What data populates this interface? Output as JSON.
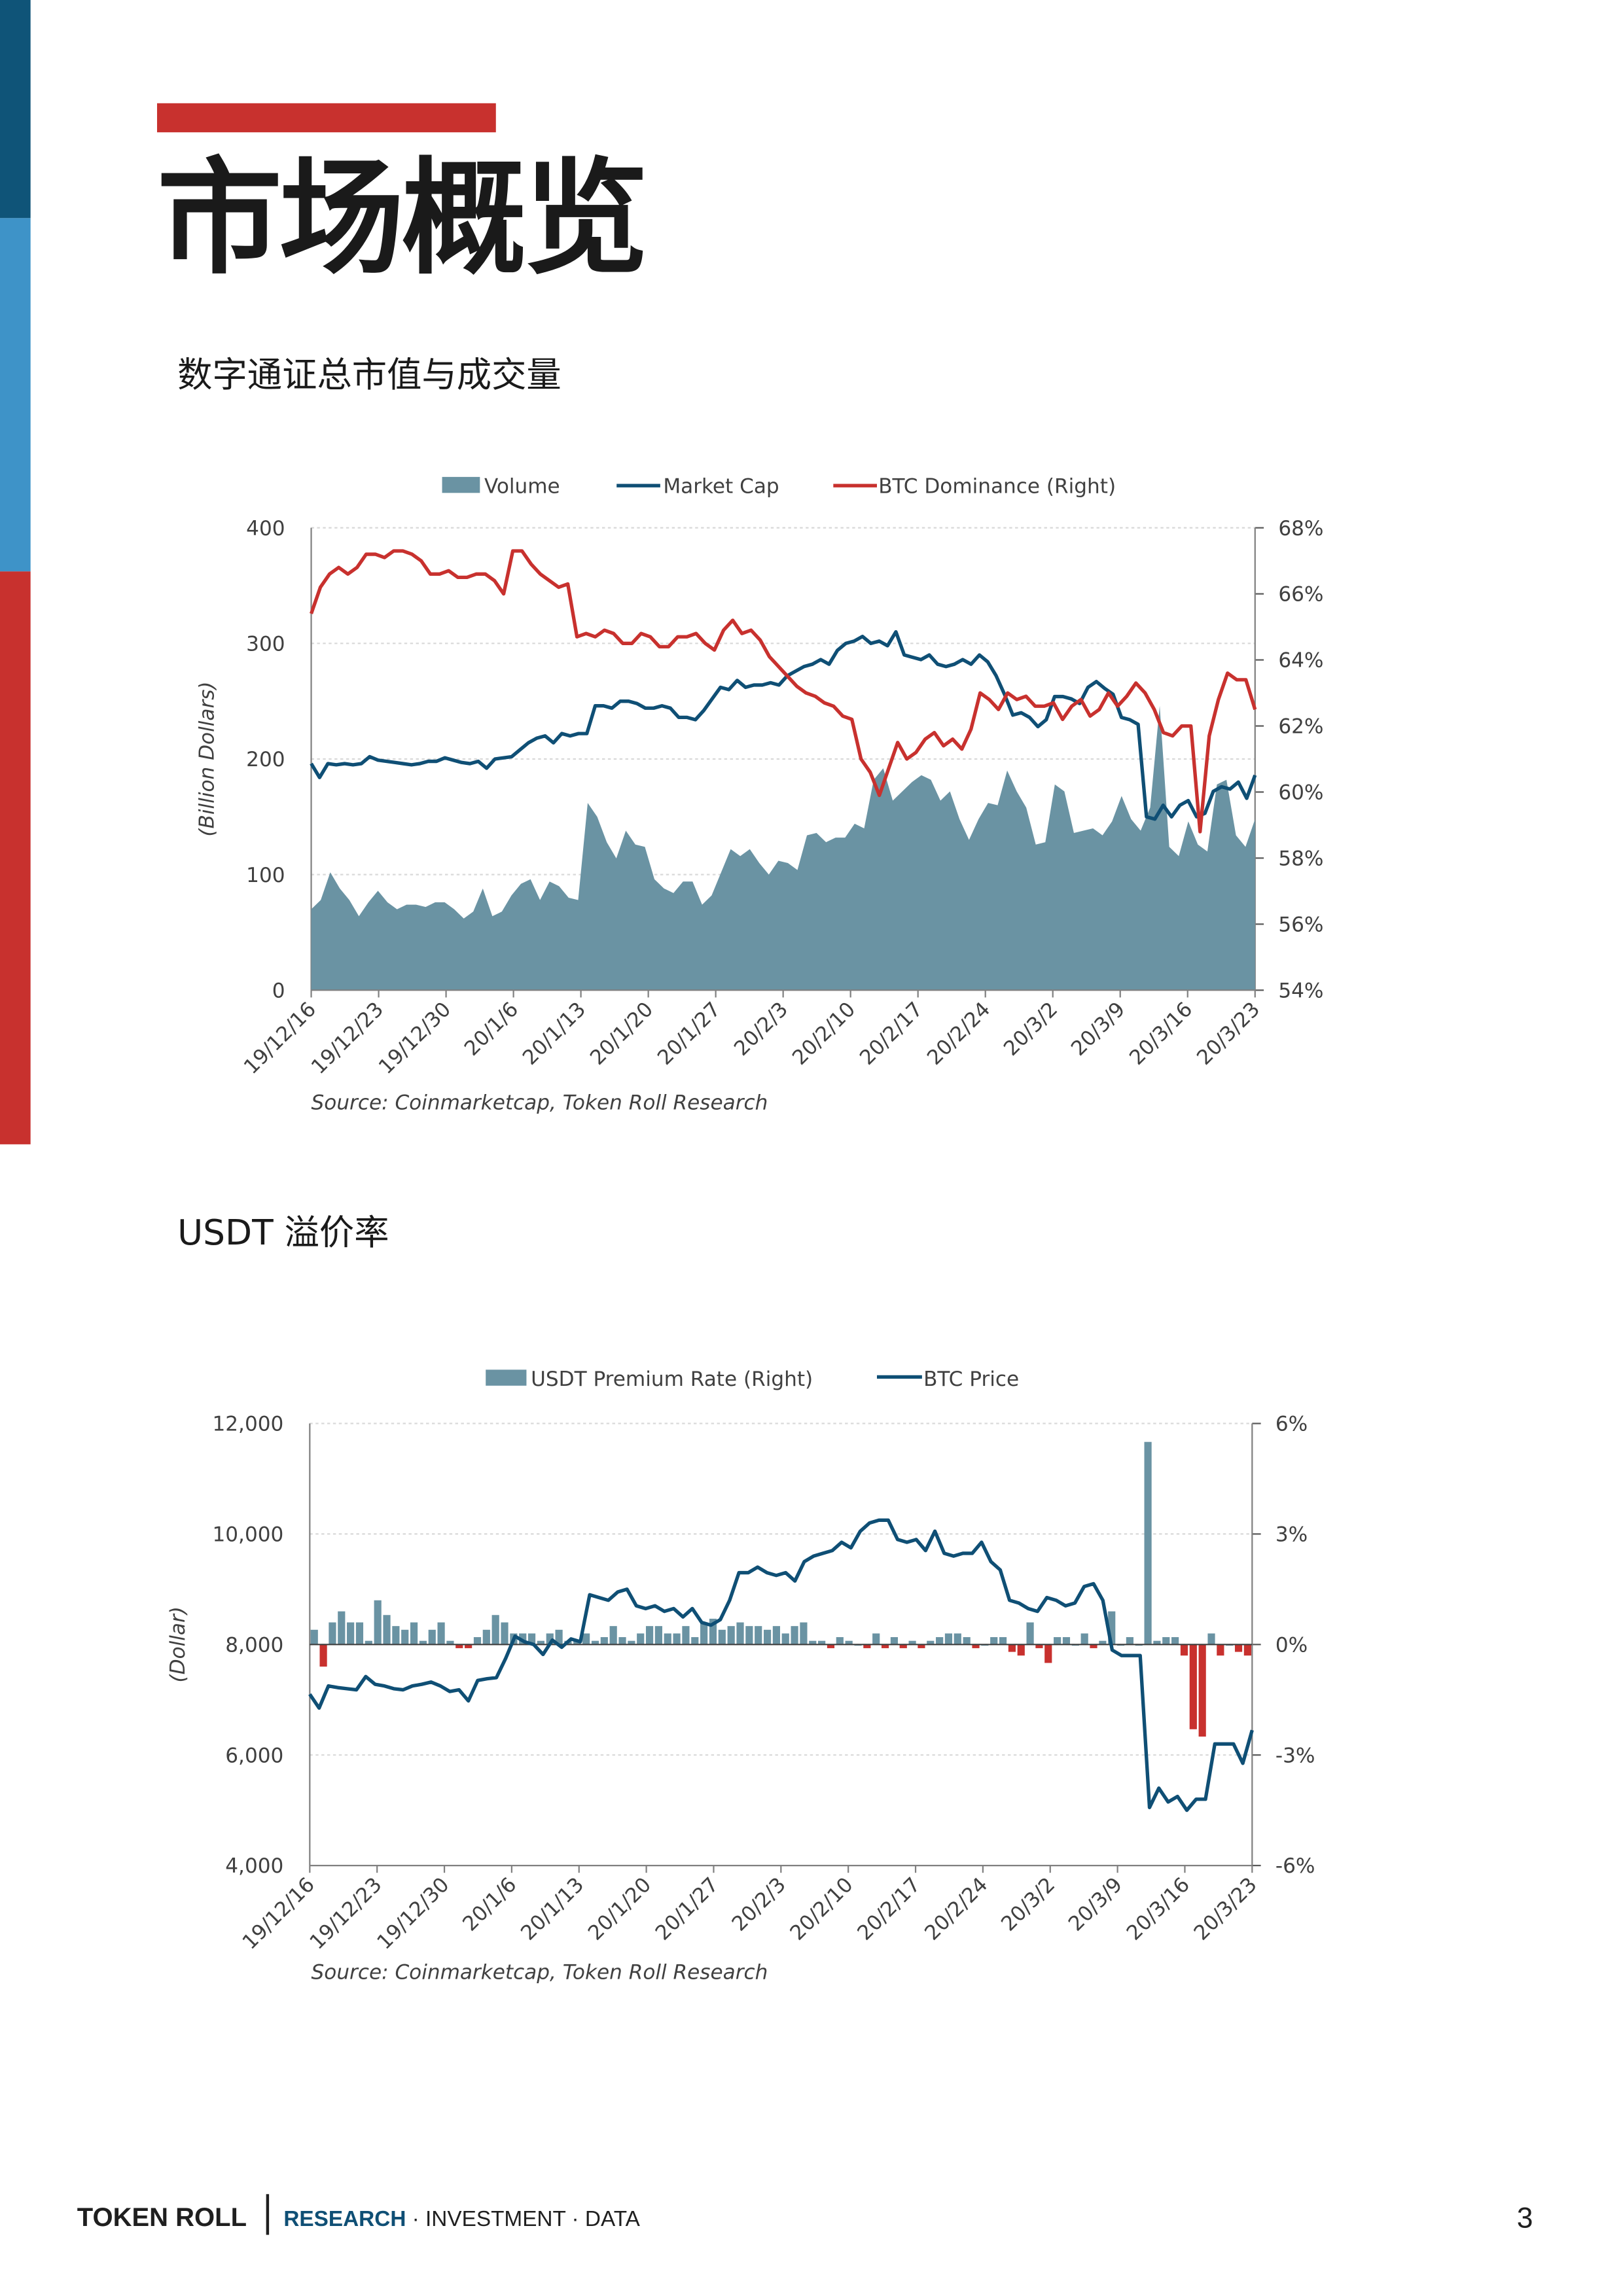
{
  "header": {
    "title": "市场概览",
    "accent_color": "#c8312e",
    "sidebar_colors": [
      "#0f5478",
      "#3e93c8",
      "#c8312e"
    ]
  },
  "section1": {
    "title": "数字通证总市值与成交量"
  },
  "section2": {
    "title": "USDT 溢价率"
  },
  "footer": {
    "brand": "TOKEN ROLL",
    "research": "RESEARCH",
    "rest": " · INVESTMENT · DATA",
    "page_number": "3"
  },
  "chart_data": [
    {
      "type": "area",
      "legend": [
        "Volume",
        "Market Cap",
        "BTC Dominance (Right)"
      ],
      "legend_position": "top",
      "ylabel": "(Billion Dollars)",
      "ylim": [
        0,
        400
      ],
      "yticks": [
        "0",
        "100",
        "200",
        "300",
        "400"
      ],
      "y2lim": [
        54,
        68
      ],
      "y2ticks": [
        "54%",
        "56%",
        "58%",
        "60%",
        "62%",
        "64%",
        "66%",
        "68%"
      ],
      "xtick_labels": [
        "19/12/16",
        "19/12/23",
        "19/12/30",
        "20/1/6",
        "20/1/13",
        "20/1/20",
        "20/1/27",
        "20/2/3",
        "20/2/10",
        "20/2/17",
        "20/2/24",
        "20/3/2",
        "20/3/9",
        "20/3/16",
        "20/3/23"
      ],
      "source": "Source: Coinmarketcap, Token Roll Research",
      "colors": {
        "volume": "#6a93a3",
        "market_cap": "#0f4f75",
        "dominance": "#c8312e"
      },
      "series": [
        {
          "name": "Volume",
          "values": [
            70,
            78,
            102,
            88,
            78,
            64,
            76,
            86,
            76,
            70,
            74,
            74,
            72,
            76,
            76,
            70,
            62,
            68,
            88,
            64,
            68,
            82,
            92,
            96,
            78,
            94,
            90,
            80,
            78,
            162,
            150,
            128,
            114,
            138,
            126,
            124,
            96,
            88,
            84,
            94,
            94,
            74,
            82,
            102,
            122,
            116,
            122,
            110,
            100,
            112,
            110,
            104,
            134,
            136,
            128,
            132,
            132,
            144,
            140,
            182,
            192,
            164,
            172,
            180,
            186,
            182,
            164,
            172,
            148,
            130,
            148,
            162,
            160,
            190,
            172,
            158,
            126,
            128,
            178,
            172,
            136,
            138,
            140,
            134,
            146,
            168,
            148,
            138,
            158,
            246,
            124,
            116,
            146,
            126,
            120,
            178,
            182,
            134,
            124,
            148
          ]
        },
        {
          "name": "Market Cap",
          "values": [
            196,
            184,
            196,
            195,
            196,
            195,
            196,
            202,
            199,
            198,
            197,
            196,
            195,
            196,
            198,
            198,
            201,
            199,
            197,
            196,
            198,
            192,
            200,
            201,
            202,
            208,
            214,
            218,
            220,
            214,
            222,
            220,
            222,
            222,
            246,
            246,
            244,
            250,
            250,
            248,
            244,
            244,
            246,
            244,
            236,
            236,
            234,
            242,
            252,
            262,
            260,
            268,
            262,
            264,
            264,
            266,
            264,
            272,
            276,
            280,
            282,
            286,
            282,
            294,
            300,
            302,
            306,
            300,
            302,
            298,
            310,
            290,
            288,
            286,
            290,
            282,
            280,
            282,
            286,
            282,
            290,
            284,
            272,
            256,
            238,
            240,
            236,
            228,
            234,
            254,
            254,
            252,
            248,
            262,
            267,
            261,
            256,
            236,
            234,
            230,
            150,
            148,
            160,
            150,
            160,
            164,
            150,
            153,
            172,
            176,
            174,
            180,
            166,
            186
          ]
        },
        {
          "name": "BTC Dominance (Right)",
          "values": [
            65.4,
            66.2,
            66.6,
            66.8,
            66.6,
            66.8,
            67.2,
            67.2,
            67.1,
            67.3,
            67.3,
            67.2,
            67.0,
            66.6,
            66.6,
            66.7,
            66.5,
            66.5,
            66.6,
            66.6,
            66.4,
            66.0,
            67.3,
            67.3,
            66.9,
            66.6,
            66.4,
            66.2,
            66.3,
            64.7,
            64.8,
            64.7,
            64.9,
            64.8,
            64.5,
            64.5,
            64.8,
            64.7,
            64.4,
            64.4,
            64.7,
            64.7,
            64.8,
            64.5,
            64.3,
            64.9,
            65.2,
            64.8,
            64.9,
            64.6,
            64.1,
            63.8,
            63.5,
            63.2,
            63.0,
            62.9,
            62.7,
            62.6,
            62.3,
            62.2,
            61.0,
            60.6,
            59.9,
            60.7,
            61.5,
            61.0,
            61.2,
            61.6,
            61.8,
            61.4,
            61.6,
            61.3,
            61.9,
            63.0,
            62.8,
            62.5,
            63.0,
            62.8,
            62.9,
            62.6,
            62.6,
            62.7,
            62.2,
            62.6,
            62.8,
            62.3,
            62.5,
            63.0,
            62.6,
            62.9,
            63.3,
            63.0,
            62.5,
            61.8,
            61.7,
            62.0,
            62.0,
            58.8,
            61.7,
            62.8,
            63.6,
            63.4,
            63.4,
            62.5
          ]
        }
      ]
    },
    {
      "type": "bar",
      "legend": [
        "USDT Premium Rate (Right)",
        "BTC Price"
      ],
      "legend_position": "top",
      "ylabel": "(Dollar)",
      "ylim": [
        4000,
        12000
      ],
      "yticks": [
        "4,000",
        "6,000",
        "8,000",
        "10,000",
        "12,000"
      ],
      "y2lim": [
        -6,
        6
      ],
      "y2ticks": [
        "-6%",
        "-3%",
        "0%",
        "3%",
        "6%"
      ],
      "xtick_labels": [
        "19/12/16",
        "19/12/23",
        "19/12/30",
        "20/1/6",
        "20/1/13",
        "20/1/20",
        "20/1/27",
        "20/2/3",
        "20/2/10",
        "20/2/17",
        "20/2/24",
        "20/3/2",
        "20/3/9",
        "20/3/16",
        "20/3/23"
      ],
      "source": "Source: Coinmarketcap, Token Roll Research",
      "colors": {
        "premium_pos": "#6a93a3",
        "premium_neg": "#c8312e",
        "btc_price": "#0f4f75"
      },
      "series": [
        {
          "name": "USDT Premium Rate (Right)",
          "values": [
            0.4,
            -0.6,
            0.6,
            0.9,
            0.6,
            0.6,
            0.1,
            1.2,
            0.8,
            0.5,
            0.4,
            0.6,
            0.1,
            0.4,
            0.6,
            0.1,
            -0.1,
            -0.1,
            0.2,
            0.4,
            0.8,
            0.6,
            0.3,
            0.3,
            0.3,
            0.1,
            0.3,
            0.4,
            0.1,
            0.1,
            0.3,
            0.1,
            0.2,
            0.5,
            0.2,
            0.1,
            0.3,
            0.5,
            0.5,
            0.3,
            0.3,
            0.5,
            0.2,
            0.6,
            0.7,
            0.4,
            0.5,
            0.6,
            0.5,
            0.5,
            0.4,
            0.5,
            0.3,
            0.5,
            0.6,
            0.1,
            0.1,
            -0.1,
            0.2,
            0.1,
            0.0,
            -0.1,
            0.3,
            -0.1,
            0.2,
            -0.1,
            0.1,
            -0.1,
            0.1,
            0.2,
            0.3,
            0.3,
            0.2,
            -0.1,
            0.0,
            0.2,
            0.2,
            -0.2,
            -0.3,
            0.6,
            -0.1,
            -0.5,
            0.2,
            0.2,
            0.0,
            0.3,
            -0.1,
            0.1,
            0.9,
            0.0,
            0.2,
            0.0,
            5.5,
            0.1,
            0.2,
            0.2,
            -0.3,
            -2.3,
            -2.5,
            0.3,
            -0.3,
            0.0,
            -0.2,
            -0.3
          ]
        },
        {
          "name": "BTC Price",
          "values": [
            7100,
            6850,
            7250,
            7220,
            7200,
            7180,
            7420,
            7280,
            7250,
            7200,
            7180,
            7250,
            7280,
            7320,
            7250,
            7150,
            7180,
            6980,
            7350,
            7380,
            7400,
            7750,
            8150,
            8050,
            8000,
            7820,
            8080,
            7950,
            8100,
            8050,
            8900,
            8850,
            8800,
            8950,
            9000,
            8700,
            8650,
            8700,
            8600,
            8650,
            8500,
            8650,
            8400,
            8350,
            8450,
            8800,
            9300,
            9300,
            9400,
            9300,
            9250,
            9300,
            9150,
            9500,
            9600,
            9650,
            9700,
            9850,
            9750,
            10050,
            10200,
            10250,
            10250,
            9900,
            9850,
            9900,
            9700,
            10050,
            9650,
            9600,
            9650,
            9650,
            9850,
            9500,
            9350,
            8800,
            8750,
            8650,
            8600,
            8850,
            8800,
            8700,
            8750,
            9050,
            9100,
            8800,
            7900,
            7800,
            7800,
            7800,
            5050,
            5400,
            5150,
            5250,
            5000,
            5200,
            5200,
            6200,
            6200,
            6200,
            5850,
            6450
          ]
        }
      ]
    }
  ]
}
